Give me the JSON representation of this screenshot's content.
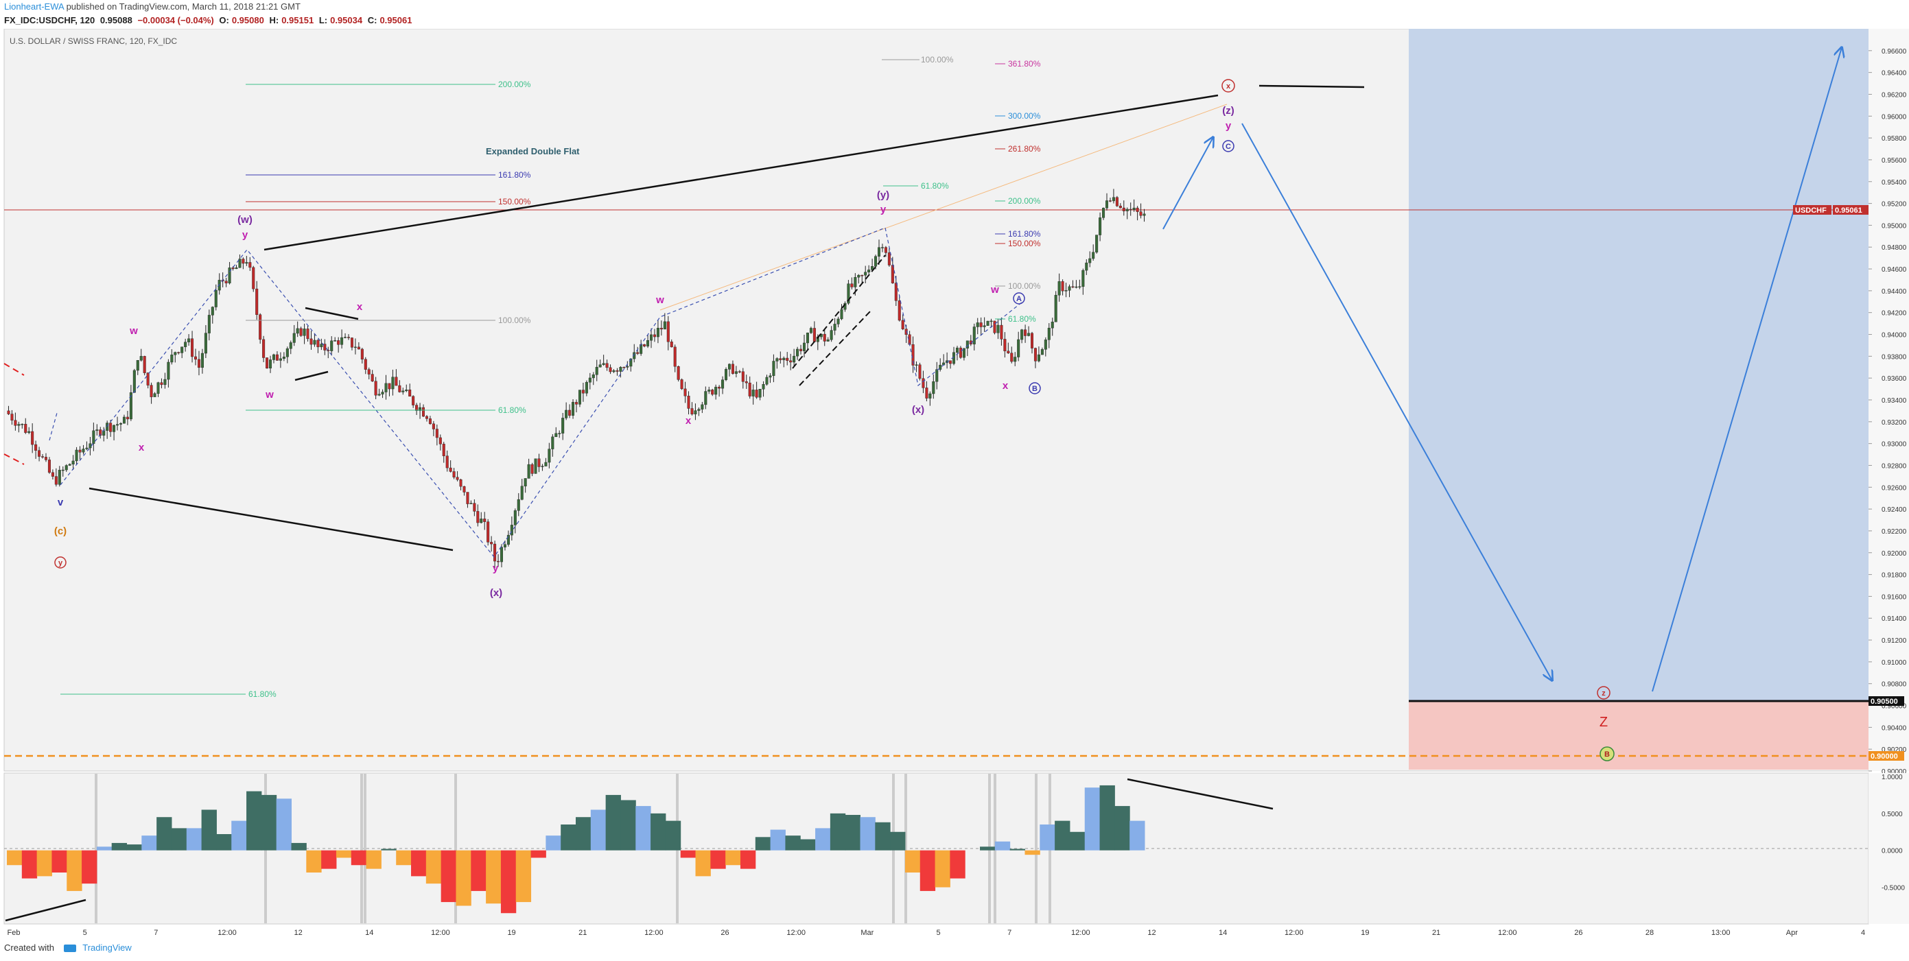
{
  "header": {
    "author": "Lionheart-EWA",
    "published": "published on TradingView.com, March 11, 2018 21:21 GMT",
    "symbol": "FX_IDC:USDCHF, 120",
    "last": "0.95088",
    "change": "−0.00034 (−0.04%)",
    "o_label": "O:",
    "o": "0.95080",
    "h_label": "H:",
    "h": "0.95151",
    "l_label": "L:",
    "l": "0.95034",
    "c_label": "C:",
    "c": "0.95061"
  },
  "footer": {
    "created_with": "Created with",
    "brand": "TradingView"
  },
  "colors": {
    "up": "#3a6b3a",
    "down": "#c02a2a",
    "blue_zone": "#c5d4ea",
    "red_zone": "#f5c6c2",
    "osc_pos_dark": "#3f6e64",
    "osc_pos_light": "#86aee8",
    "osc_neg_red": "#f03a3a",
    "osc_neg_orange": "#f7a93b"
  },
  "chart_data": [
    {
      "type": "candlestick",
      "title": "U.S. DOLLAR / SWISS FRANC, 120, FX_IDC",
      "ylim": [
        0.9,
        0.968
      ],
      "y_ticks": [
        "0.96600",
        "0.96400",
        "0.96200",
        "0.96000",
        "0.95800",
        "0.95600",
        "0.95400",
        "0.95200",
        "0.95000",
        "0.94800",
        "0.94600",
        "0.94400",
        "0.94200",
        "0.94000",
        "0.93800",
        "0.93600",
        "0.93400",
        "0.93200",
        "0.93000",
        "0.92800",
        "0.92600",
        "0.92400",
        "0.92200",
        "0.92000",
        "0.91800",
        "0.91600",
        "0.91400",
        "0.91200",
        "0.91000",
        "0.90800",
        "0.90600",
        "0.90400",
        "0.90200",
        "0.90000"
      ],
      "x_ticks": [
        "Feb",
        "5",
        "7",
        "12:00",
        "12",
        "14",
        "12:00",
        "19",
        "21",
        "12:00",
        "26",
        "12:00",
        "Mar",
        "5",
        "7",
        "12:00",
        "12",
        "14",
        "12:00",
        "19",
        "21",
        "12:00",
        "26",
        "28",
        "13:00",
        "Apr",
        "4"
      ],
      "price_path": [
        [
          0,
          0.933
        ],
        [
          20,
          0.931
        ],
        [
          40,
          0.9265
        ],
        [
          60,
          0.929
        ],
        [
          80,
          0.9315
        ],
        [
          100,
          0.932
        ],
        [
          110,
          0.9385
        ],
        [
          120,
          0.9345
        ],
        [
          130,
          0.936
        ],
        [
          140,
          0.9385
        ],
        [
          150,
          0.9395
        ],
        [
          160,
          0.937
        ],
        [
          175,
          0.9445
        ],
        [
          185,
          0.9455
        ],
        [
          200,
          0.947
        ],
        [
          215,
          0.937
        ],
        [
          230,
          0.9385
        ],
        [
          245,
          0.9405
        ],
        [
          260,
          0.9385
        ],
        [
          275,
          0.9395
        ],
        [
          290,
          0.939
        ],
        [
          305,
          0.935
        ],
        [
          320,
          0.9355
        ],
        [
          335,
          0.934
        ],
        [
          350,
          0.9325
        ],
        [
          365,
          0.928
        ],
        [
          380,
          0.925
        ],
        [
          395,
          0.9225
        ],
        [
          405,
          0.919
        ],
        [
          415,
          0.922
        ],
        [
          430,
          0.9275
        ],
        [
          445,
          0.9285
        ],
        [
          460,
          0.932
        ],
        [
          475,
          0.9345
        ],
        [
          490,
          0.937
        ],
        [
          505,
          0.937
        ],
        [
          520,
          0.938
        ],
        [
          532,
          0.9395
        ],
        [
          545,
          0.941
        ],
        [
          555,
          0.9355
        ],
        [
          565,
          0.933
        ],
        [
          580,
          0.9345
        ],
        [
          600,
          0.937
        ],
        [
          620,
          0.934
        ],
        [
          635,
          0.9375
        ],
        [
          650,
          0.938
        ],
        [
          665,
          0.94
        ],
        [
          680,
          0.9395
        ],
        [
          695,
          0.944
        ],
        [
          710,
          0.9455
        ],
        [
          725,
          0.9488
        ],
        [
          735,
          0.943
        ],
        [
          748,
          0.938
        ],
        [
          760,
          0.9345
        ],
        [
          775,
          0.9375
        ],
        [
          790,
          0.9385
        ],
        [
          805,
          0.941
        ],
        [
          820,
          0.9405
        ],
        [
          830,
          0.937
        ],
        [
          840,
          0.941
        ],
        [
          850,
          0.938
        ],
        [
          860,
          0.9395
        ],
        [
          870,
          0.9445
        ],
        [
          885,
          0.944
        ],
        [
          898,
          0.948
        ],
        [
          910,
          0.953
        ],
        [
          925,
          0.9515
        ],
        [
          940,
          0.9508
        ]
      ]
    },
    {
      "type": "area",
      "title": "",
      "ylim": [
        -0.95,
        1.0
      ],
      "y_ticks": [
        "1.0000",
        "0.5000",
        "0.0000",
        "-0.5000"
      ],
      "values": [
        -0.2,
        -0.38,
        -0.35,
        -0.3,
        -0.55,
        -0.45,
        0.05,
        0.1,
        0.08,
        0.2,
        0.45,
        0.3,
        0.3,
        0.55,
        0.22,
        0.4,
        0.8,
        0.75,
        0.7,
        0.1,
        -0.3,
        -0.25,
        -0.1,
        -0.2,
        -0.25,
        0.02,
        -0.2,
        -0.35,
        -0.45,
        -0.7,
        -0.75,
        -0.55,
        -0.72,
        -0.85,
        -0.7,
        -0.1,
        0.2,
        0.35,
        0.45,
        0.55,
        0.75,
        0.68,
        0.6,
        0.5,
        0.4,
        -0.1,
        -0.35,
        -0.25,
        -0.2,
        -0.25,
        0.18,
        0.28,
        0.2,
        0.15,
        0.3,
        0.5,
        0.48,
        0.45,
        0.38,
        0.25,
        -0.3,
        -0.55,
        -0.5,
        -0.38,
        0.0,
        0.05,
        0.12,
        0.02,
        -0.06,
        0.35,
        0.4,
        0.25,
        0.85,
        0.88,
        0.6,
        0.4
      ]
    }
  ],
  "labels": {
    "expanded_double_flat": "Expanded Double Flat",
    "w_paren": "(w)",
    "x_paren": "(x)",
    "y_paren": "(y)",
    "z_paren": "(z)",
    "w": "w",
    "x": "x",
    "y": "y",
    "v": "v",
    "c_paren_orange": "(c)",
    "circ_y": "y",
    "circ_x": "x",
    "circ_z": "z",
    "circ_c": "C",
    "circ_a": "A",
    "circ_b": "B",
    "circ_B_green": "B",
    "Z": "Z"
  },
  "fib": {
    "f200a": "200.00%",
    "f161a": "161.80%",
    "f150a": "150.00%",
    "f100a": "100.00%",
    "f618a": "61.80%",
    "f618b": "61.80%",
    "f100b": "100.00%",
    "f3618": "361.80%",
    "f300": "300.00%",
    "f2618": "261.80%",
    "f618c": "61.80%",
    "f200b": "200.00%",
    "f161b": "161.80%",
    "f150b": "150.00%",
    "f100c": "100.00%",
    "f618d": "61.80%"
  },
  "badges": {
    "usdchf": "USDCHF",
    "usdchf_price": "0.95061",
    "level1": "0.90500",
    "level2": "0.90000"
  }
}
